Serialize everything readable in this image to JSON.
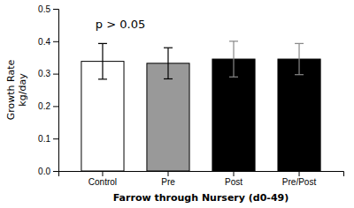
{
  "chart_data": {
    "type": "bar",
    "categories": [
      "Control",
      "Pre",
      "Post",
      "Pre/Post"
    ],
    "values": [
      0.338,
      0.332,
      0.345,
      0.345
    ],
    "errors": [
      0.055,
      0.048,
      0.055,
      0.048
    ],
    "colors": [
      "white",
      "#999999",
      "black",
      "black"
    ],
    "ylabel": "Growth Rate\nkg/day",
    "xlabel": "Farrow through Nursery (d0-49)",
    "annotation": "p > 0.05",
    "ylim": [
      0.0,
      0.5
    ],
    "yticks": [
      {
        "value": 0.0,
        "label": "0.0"
      },
      0.1,
      0.2,
      0.3,
      0.4,
      0.5
    ]
  }
}
